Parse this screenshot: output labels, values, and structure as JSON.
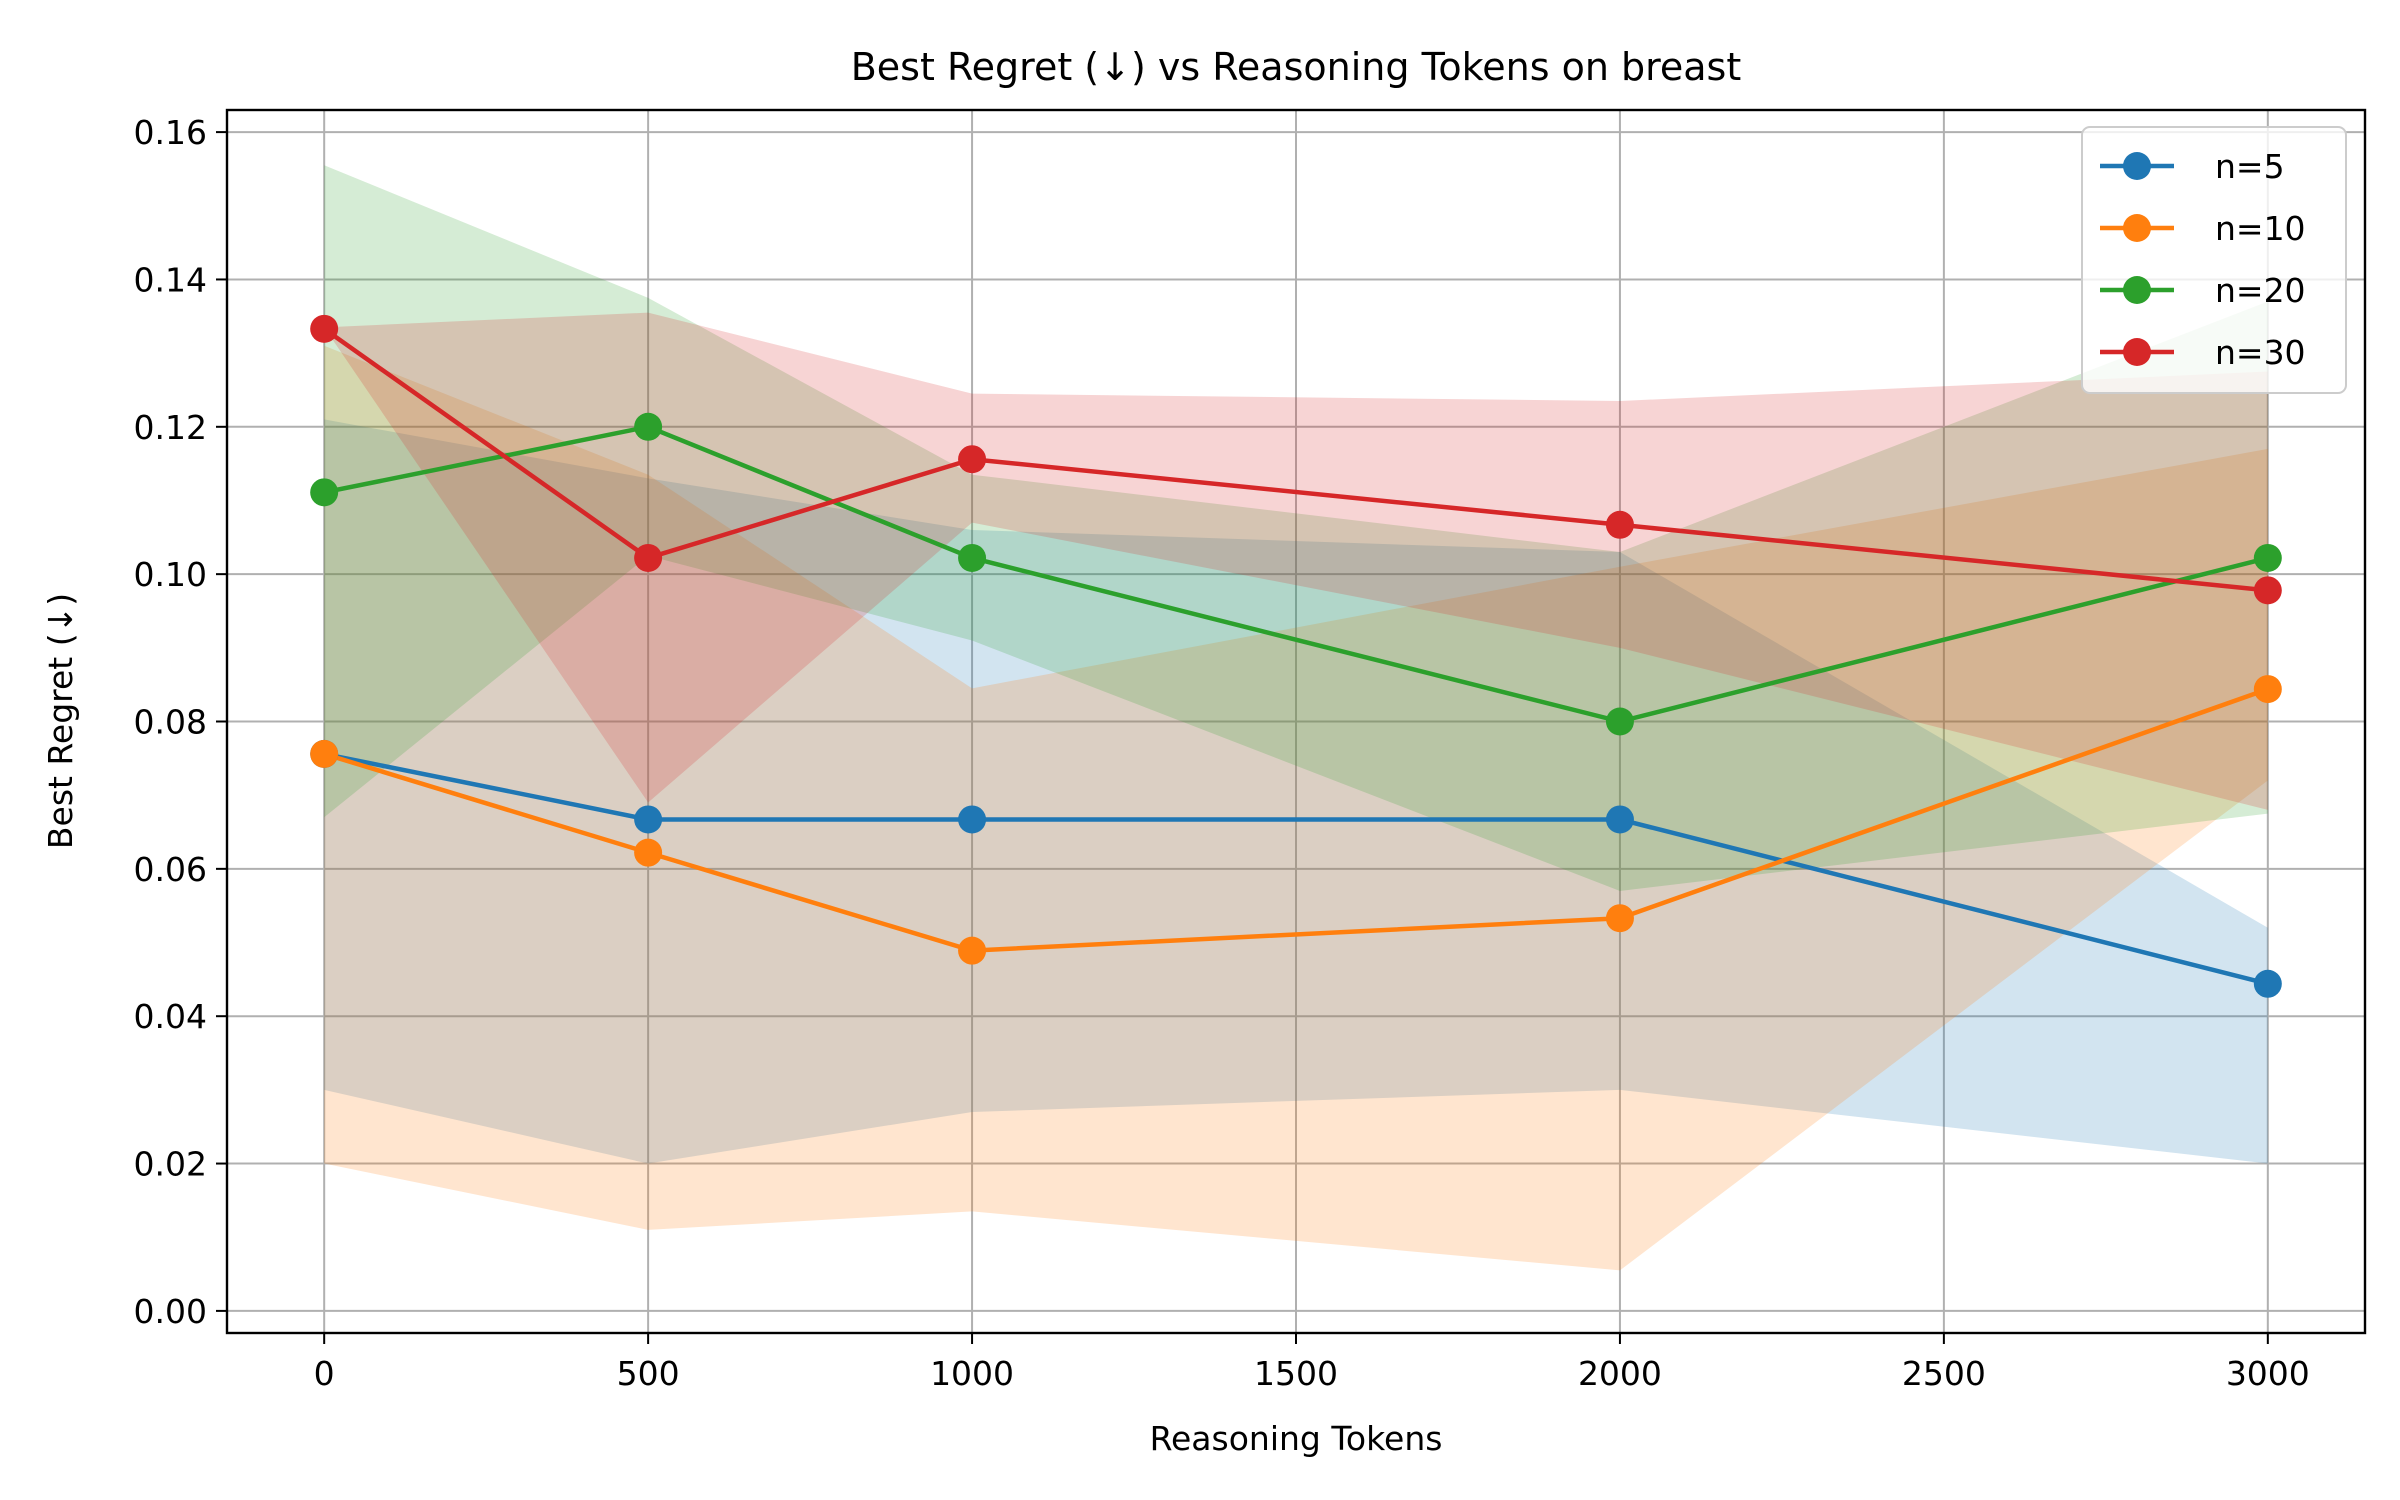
{
  "chart_data": {
    "type": "line",
    "title": "Best Regret (↓) vs Reasoning Tokens on breast",
    "xlabel": "Reasoning Tokens",
    "ylabel": "Best Regret (↓)",
    "xlim": [
      -150,
      3150
    ],
    "ylim": [
      -0.003,
      0.163
    ],
    "xticks": [
      0,
      500,
      1000,
      1500,
      2000,
      2500,
      3000
    ],
    "xtick_labels": [
      "0",
      "500",
      "1000",
      "1500",
      "2000",
      "2500",
      "3000"
    ],
    "yticks": [
      0.0,
      0.02,
      0.04,
      0.06,
      0.08,
      0.1,
      0.12,
      0.14,
      0.16
    ],
    "ytick_labels": [
      "0.00",
      "0.02",
      "0.04",
      "0.06",
      "0.08",
      "0.10",
      "0.12",
      "0.14",
      "0.16"
    ],
    "grid": true,
    "legend_position": "top-right",
    "x": [
      0,
      500,
      1000,
      2000,
      3000
    ],
    "series": [
      {
        "name": "n=5",
        "color": "#1f77b4",
        "values": [
          0.0756,
          0.0667,
          0.0667,
          0.0667,
          0.0444
        ],
        "lower": [
          0.03,
          0.02,
          0.027,
          0.03,
          0.02
        ],
        "upper": [
          0.121,
          0.113,
          0.106,
          0.103,
          0.052
        ]
      },
      {
        "name": "n=10",
        "color": "#ff7f0e",
        "values": [
          0.0756,
          0.0622,
          0.0489,
          0.0533,
          0.0844
        ],
        "lower": [
          0.02,
          0.011,
          0.0135,
          0.0055,
          0.072
        ],
        "upper": [
          0.131,
          0.1135,
          0.0845,
          0.101,
          0.117
        ]
      },
      {
        "name": "n=20",
        "color": "#2ca02c",
        "values": [
          0.1111,
          0.12,
          0.1022,
          0.08,
          0.1022
        ],
        "lower": [
          0.067,
          0.1025,
          0.091,
          0.057,
          0.0675
        ],
        "upper": [
          0.1555,
          0.1375,
          0.1135,
          0.103,
          0.137
        ]
      },
      {
        "name": "n=30",
        "color": "#d62728",
        "values": [
          0.1333,
          0.1022,
          0.1156,
          0.1067,
          0.0978
        ],
        "lower": [
          0.1335,
          0.069,
          0.107,
          0.09,
          0.068
        ],
        "upper": [
          0.1335,
          0.1355,
          0.1245,
          0.1235,
          0.1275
        ]
      }
    ]
  }
}
